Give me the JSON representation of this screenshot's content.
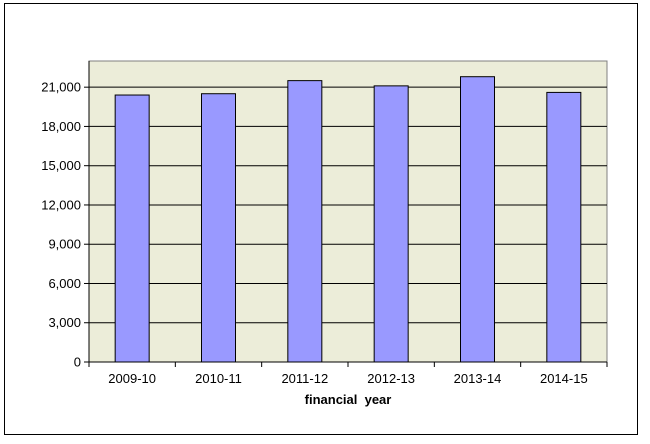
{
  "chart_data": {
    "type": "bar",
    "title": "",
    "xlabel": "financial  year",
    "ylabel": "",
    "categories": [
      "2009-10",
      "2010-11",
      "2011-12",
      "2012-13",
      "2013-14",
      "2014-15"
    ],
    "values": [
      20400,
      20500,
      21500,
      21100,
      21800,
      20600
    ],
    "ylim": [
      0,
      23000
    ],
    "yticks": [
      0,
      3000,
      6000,
      9000,
      12000,
      15000,
      18000,
      21000
    ],
    "ytick_labels": [
      "0",
      "3,000",
      "6,000",
      "9,000",
      "12,000",
      "15,000",
      "18,000",
      "21,000"
    ],
    "grid": true,
    "legend": "none",
    "colors": {
      "plot_background": "#ECEDD9",
      "bar_fill": "#9999FF",
      "bar_stroke": "#000000",
      "gridline": "#000000"
    }
  }
}
